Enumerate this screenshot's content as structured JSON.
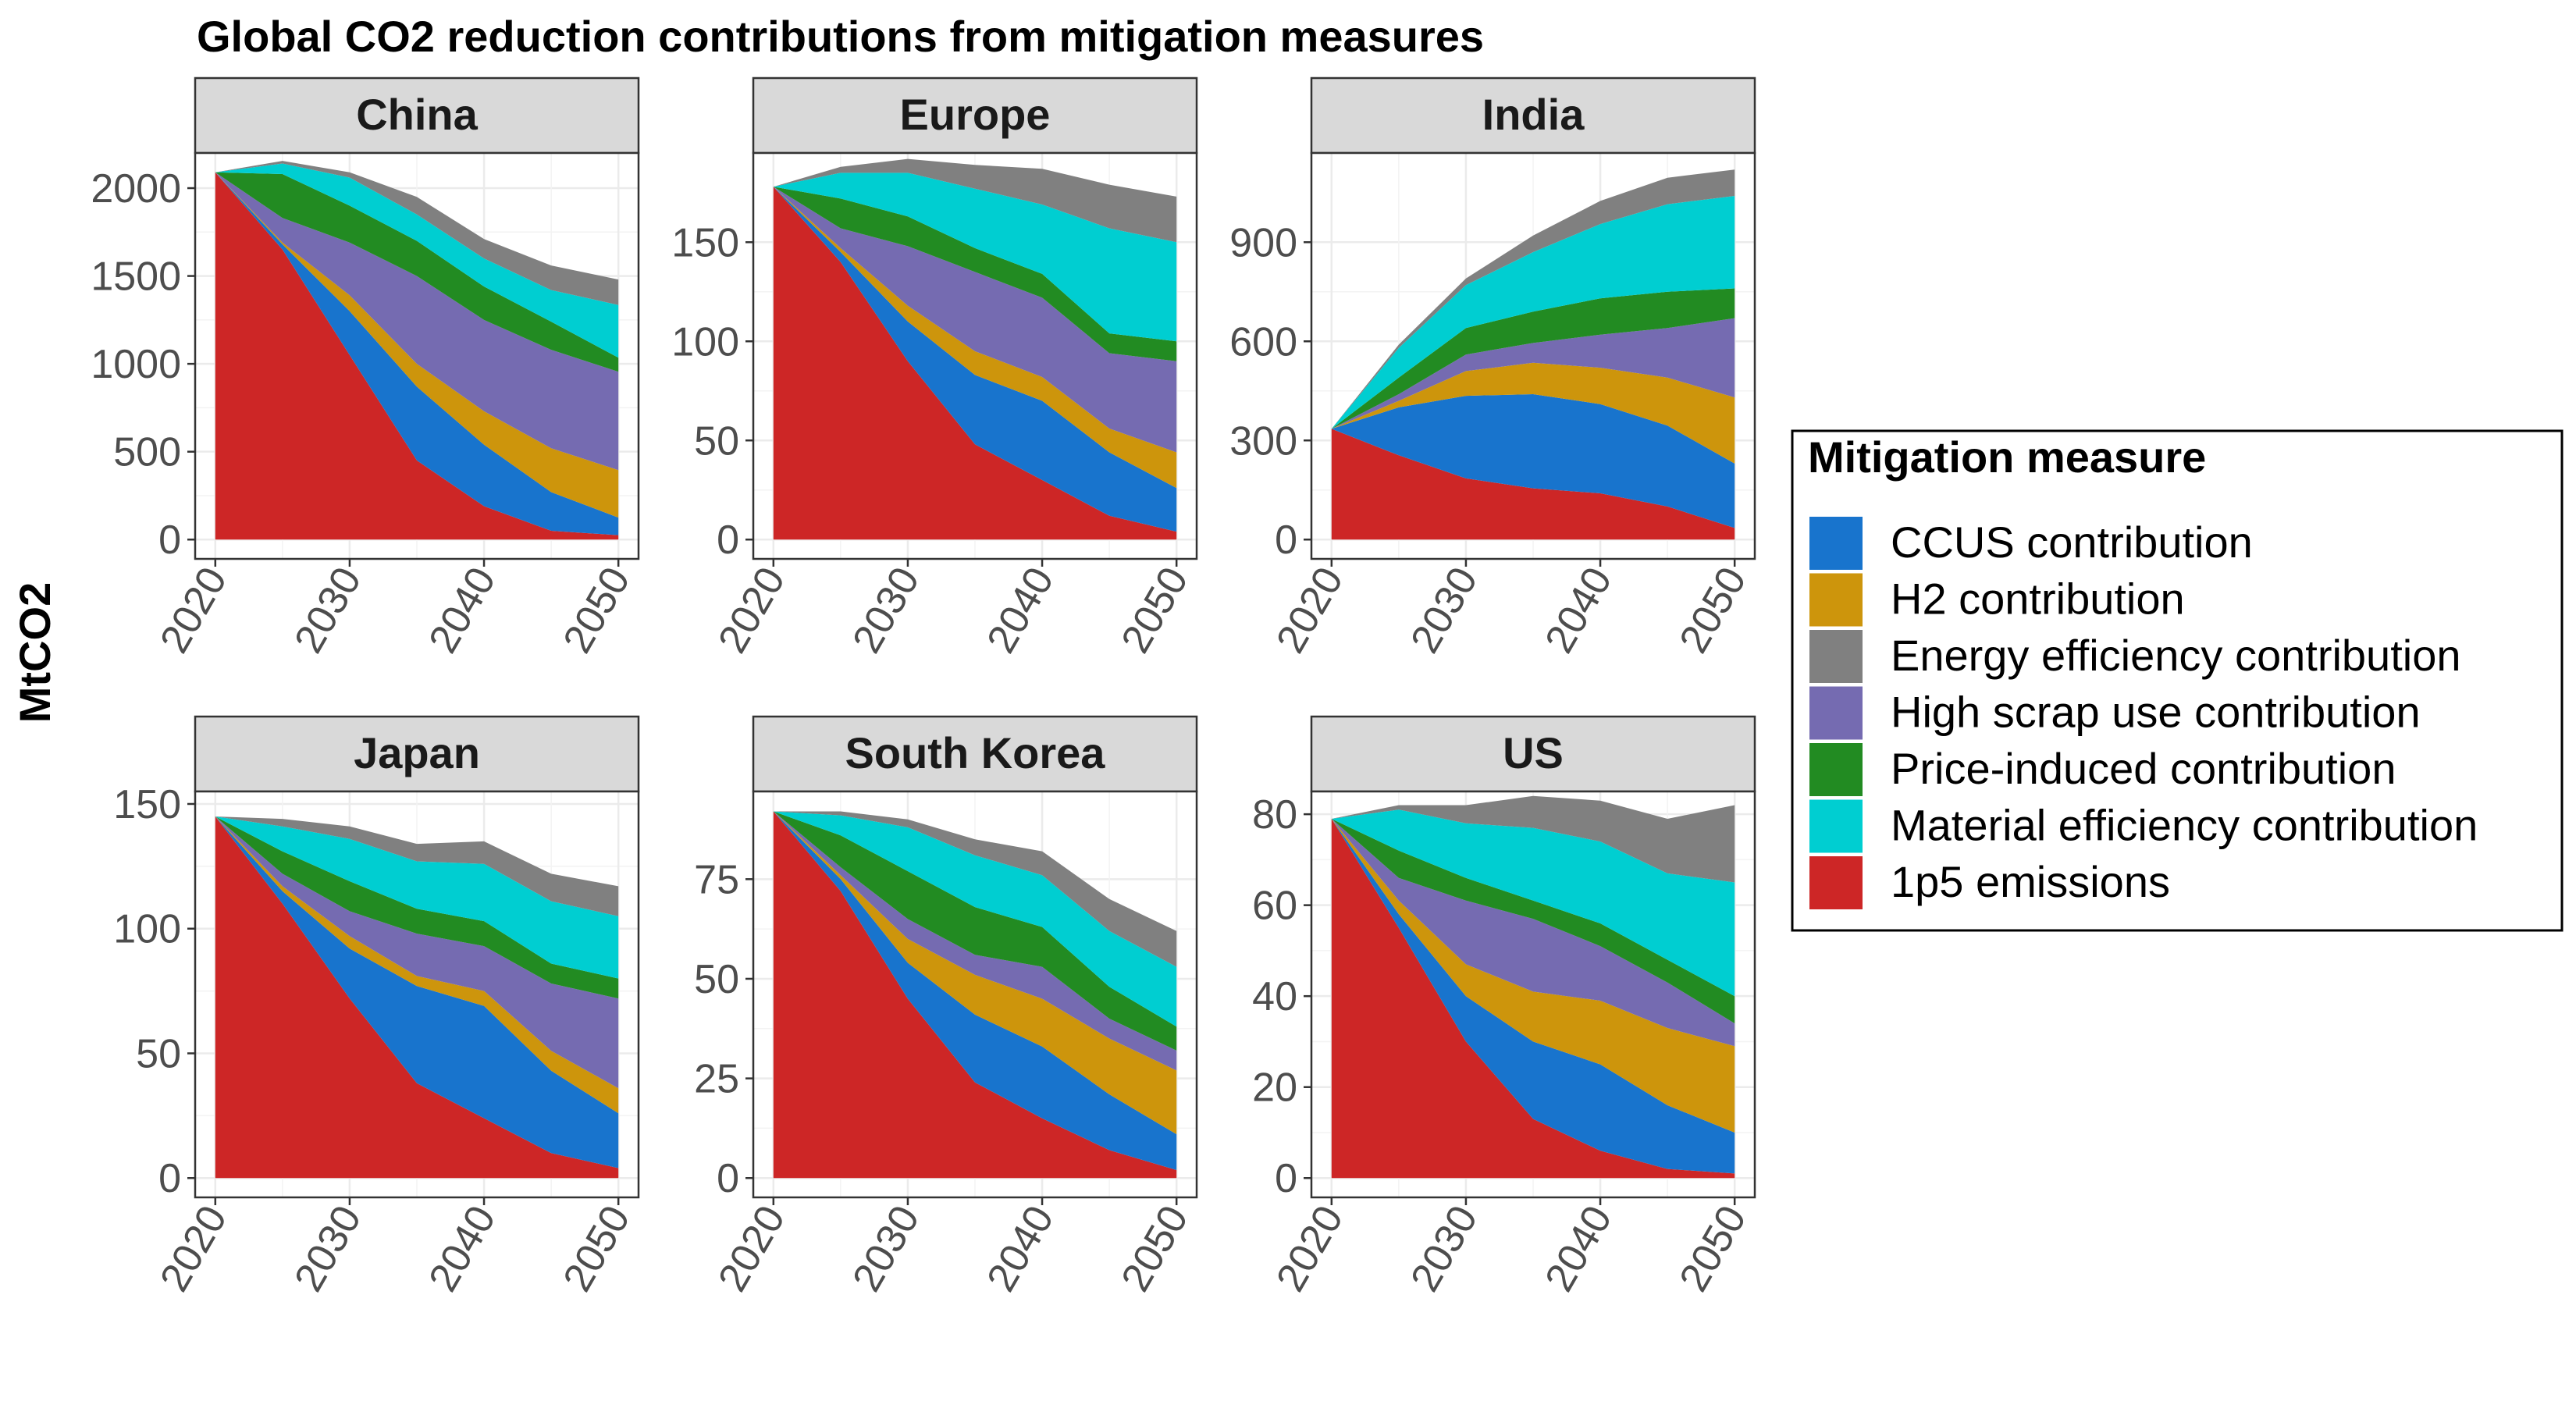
{
  "title": "Global CO2 reduction contributions from mitigation measures",
  "ylabel": "MtCO2",
  "legend": {
    "title": "Mitigation measure",
    "items": [
      {
        "key": "ccus",
        "label": "CCUS contribution",
        "color": "#1874CD"
      },
      {
        "key": "h2",
        "label": "H2 contribution",
        "color": "#CD950C"
      },
      {
        "key": "ee",
        "label": "Energy efficiency contribution",
        "color": "#808080"
      },
      {
        "key": "scrap",
        "label": "High scrap use contribution",
        "color": "#756BB1"
      },
      {
        "key": "price",
        "label": "Price-induced contribution",
        "color": "#228B22"
      },
      {
        "key": "matEff",
        "label": "Material efficiency contribution",
        "color": "#00CED1"
      },
      {
        "key": "emis",
        "label": "1p5 emissions",
        "color": "#CD2626"
      }
    ]
  },
  "chart_data": {
    "type": "area",
    "stacked": true,
    "stack_order_bottom_to_top": [
      "emis",
      "ccus",
      "h2",
      "scrap",
      "price",
      "matEff",
      "ee"
    ],
    "x": [
      2020,
      2025,
      2030,
      2035,
      2040,
      2045,
      2050
    ],
    "x_ticks": [
      2020,
      2030,
      2040,
      2050
    ],
    "grid": true,
    "legend_position": "right",
    "panels": [
      {
        "name": "China",
        "ylim": [
          0,
          2200
        ],
        "y_ticks": [
          0,
          500,
          1000,
          1500,
          2000
        ],
        "series": {
          "emis": [
            2090,
            1650,
            1050,
            450,
            190,
            50,
            25
          ],
          "ccus": [
            0,
            30,
            250,
            420,
            350,
            220,
            100
          ],
          "h2": [
            0,
            10,
            90,
            130,
            190,
            250,
            270
          ],
          "scrap": [
            0,
            140,
            300,
            500,
            520,
            560,
            560
          ],
          "price": [
            0,
            250,
            210,
            200,
            190,
            160,
            80
          ],
          "matEff": [
            0,
            60,
            160,
            150,
            160,
            180,
            300
          ],
          "ee": [
            0,
            15,
            30,
            100,
            110,
            140,
            145
          ]
        }
      },
      {
        "name": "Europe",
        "ylim": [
          0,
          195
        ],
        "y_ticks": [
          0,
          50,
          100,
          150
        ],
        "series": {
          "emis": [
            178,
            140,
            90,
            48,
            30,
            12,
            4
          ],
          "ccus": [
            0,
            5,
            20,
            35,
            40,
            32,
            22
          ],
          "h2": [
            0,
            2,
            8,
            12,
            12,
            12,
            18
          ],
          "scrap": [
            0,
            10,
            30,
            40,
            40,
            38,
            46
          ],
          "price": [
            0,
            15,
            15,
            12,
            12,
            10,
            10
          ],
          "matEff": [
            0,
            13,
            22,
            30,
            35,
            53,
            50
          ],
          "ee": [
            0,
            3,
            7,
            12,
            18,
            22,
            23
          ]
        }
      },
      {
        "name": "India",
        "ylim": [
          0,
          1170
        ],
        "y_ticks": [
          0,
          300,
          600,
          900
        ],
        "series": {
          "emis": [
            335,
            255,
            185,
            155,
            140,
            100,
            35
          ],
          "ccus": [
            0,
            145,
            250,
            285,
            270,
            245,
            195
          ],
          "h2": [
            0,
            20,
            75,
            95,
            110,
            145,
            200
          ],
          "scrap": [
            0,
            20,
            50,
            60,
            100,
            150,
            240
          ],
          "price": [
            0,
            50,
            80,
            95,
            110,
            110,
            90
          ],
          "matEff": [
            0,
            90,
            130,
            180,
            225,
            265,
            280
          ],
          "ee": [
            0,
            10,
            20,
            50,
            70,
            80,
            80
          ]
        }
      },
      {
        "name": "Japan",
        "ylim": [
          0,
          155
        ],
        "y_ticks": [
          0,
          50,
          100,
          150
        ],
        "series": {
          "emis": [
            145,
            110,
            72,
            38,
            24,
            10,
            4
          ],
          "ccus": [
            0,
            5,
            20,
            39,
            45,
            33,
            22
          ],
          "h2": [
            0,
            2,
            5,
            4,
            6,
            8,
            10
          ],
          "scrap": [
            0,
            5,
            10,
            17,
            18,
            27,
            36
          ],
          "price": [
            0,
            9,
            12,
            10,
            10,
            8,
            8
          ],
          "matEff": [
            0,
            10,
            17,
            19,
            23,
            25,
            25
          ],
          "ee": [
            0,
            3,
            5,
            7,
            9,
            11,
            12
          ]
        }
      },
      {
        "name": "South Korea",
        "ylim": [
          0,
          97
        ],
        "y_ticks": [
          0,
          25,
          50,
          75
        ],
        "series": {
          "emis": [
            92,
            72,
            45,
            24,
            15,
            7,
            2
          ],
          "ccus": [
            0,
            3,
            9,
            17,
            18,
            14,
            9
          ],
          "h2": [
            0,
            1,
            6,
            10,
            12,
            14,
            16
          ],
          "scrap": [
            0,
            2,
            5,
            5,
            8,
            5,
            5
          ],
          "price": [
            0,
            8,
            12,
            12,
            10,
            8,
            6
          ],
          "matEff": [
            0,
            5,
            11,
            13,
            13,
            14,
            15
          ],
          "ee": [
            0,
            1,
            2,
            4,
            6,
            8,
            9
          ]
        }
      },
      {
        "name": "US",
        "ylim": [
          0,
          85
        ],
        "y_ticks": [
          0,
          20,
          40,
          60,
          80
        ],
        "series": {
          "emis": [
            79,
            55,
            30,
            13,
            6,
            2,
            1
          ],
          "ccus": [
            0,
            3,
            10,
            17,
            19,
            14,
            9
          ],
          "h2": [
            0,
            3,
            7,
            11,
            14,
            17,
            19
          ],
          "scrap": [
            0,
            5,
            14,
            16,
            12,
            10,
            5
          ],
          "price": [
            0,
            6,
            5,
            4,
            5,
            5,
            6
          ],
          "matEff": [
            0,
            9,
            12,
            16,
            18,
            19,
            25
          ],
          "ee": [
            0,
            1,
            4,
            7,
            9,
            12,
            17
          ]
        }
      }
    ]
  }
}
